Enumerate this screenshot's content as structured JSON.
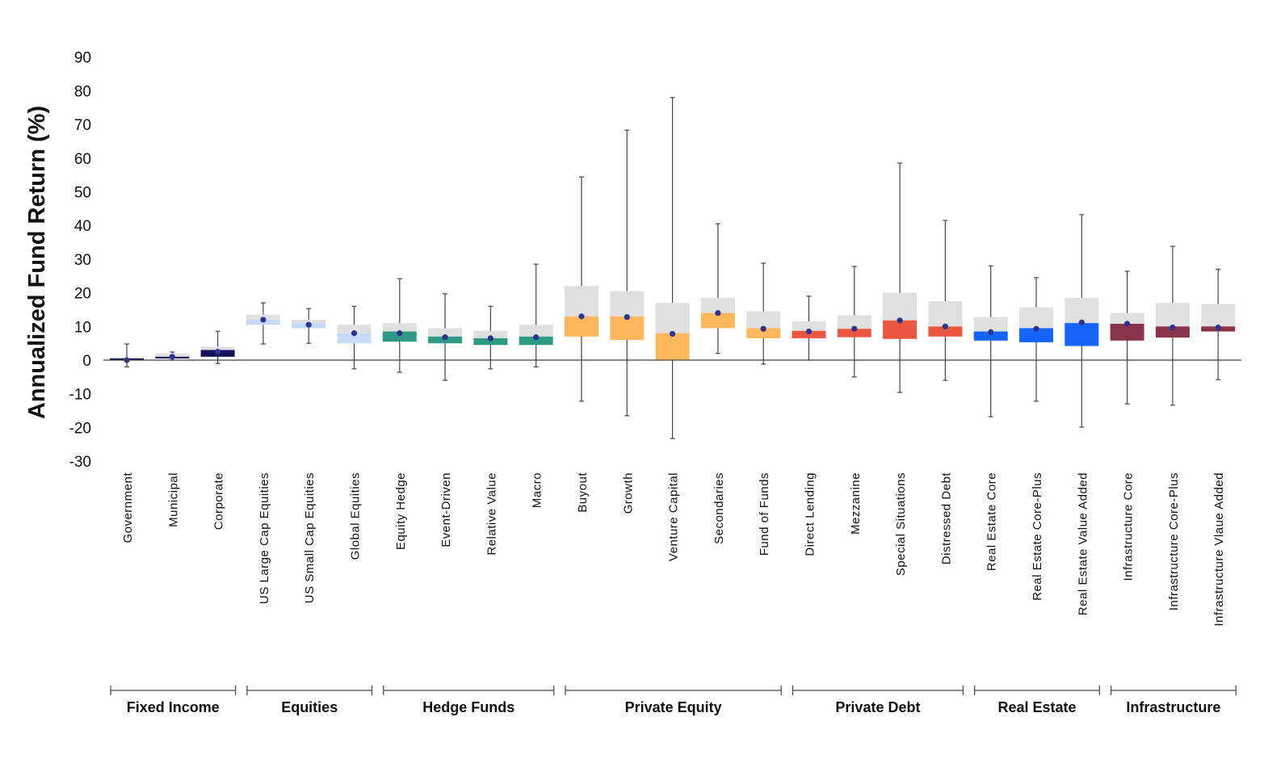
{
  "chart_data": {
    "type": "boxplot",
    "title": "",
    "ylabel": "Annualized Fund Return (%)",
    "xlabel": "",
    "ylim": [
      -30,
      90
    ],
    "yticks": [
      -30,
      -20,
      -10,
      0,
      10,
      20,
      30,
      40,
      50,
      60,
      70,
      80,
      90
    ],
    "grid": false,
    "legend": "none",
    "box_upper_color": "#e0e0e0",
    "mean_marker_color": "#2b3590",
    "groups": [
      {
        "name": "Fixed Income",
        "color": "#14115c",
        "categories": [
          {
            "label": "Government",
            "min": -2,
            "q1": 0,
            "median": 0.5,
            "q3": 0.8,
            "max": 4.8,
            "mean": 0
          },
          {
            "label": "Municipal",
            "min": 0,
            "q1": 0.5,
            "median": 1,
            "q3": 2,
            "max": 2.4,
            "mean": 1
          },
          {
            "label": "Corporate",
            "min": -1,
            "q1": 1,
            "median": 3,
            "q3": 4,
            "max": 8.6,
            "mean": 2.5
          }
        ]
      },
      {
        "name": "Equities",
        "color": "#c6daf8",
        "categories": [
          {
            "label": "US Large Cap Equities",
            "min": 4.8,
            "q1": 10.5,
            "median": 12,
            "q3": 13.5,
            "max": 17,
            "mean": 12
          },
          {
            "label": "US Small Cap Equities",
            "min": 5,
            "q1": 9.5,
            "median": 11,
            "q3": 12,
            "max": 15.3,
            "mean": 10.5
          },
          {
            "label": "Global Equities",
            "min": -2.6,
            "q1": 5,
            "median": 8,
            "q3": 10.5,
            "max": 16,
            "mean": 8
          }
        ]
      },
      {
        "name": "Hedge Funds",
        "color": "#2e9a84",
        "categories": [
          {
            "label": "Equity Hedge",
            "min": -3.6,
            "q1": 5.5,
            "median": 8.5,
            "q3": 11,
            "max": 24.2,
            "mean": 8
          },
          {
            "label": "Event-Driven",
            "min": -6,
            "q1": 5,
            "median": 7,
            "q3": 9.5,
            "max": 19.7,
            "mean": 6.8
          },
          {
            "label": "Relative Value",
            "min": -2.6,
            "q1": 4.5,
            "median": 6.5,
            "q3": 8.7,
            "max": 16,
            "mean": 6.5
          },
          {
            "label": "Macro",
            "min": -2,
            "q1": 4.5,
            "median": 7,
            "q3": 10.5,
            "max": 28.5,
            "mean": 6.8
          }
        ]
      },
      {
        "name": "Private Equity",
        "color": "#ffb75d",
        "categories": [
          {
            "label": "Buyout",
            "min": -12.2,
            "q1": 7,
            "median": 13,
            "q3": 22,
            "max": 54.4,
            "mean": 13
          },
          {
            "label": "Growth",
            "min": -16.5,
            "q1": 6,
            "median": 13,
            "q3": 20.5,
            "max": 68.3,
            "mean": 12.8
          },
          {
            "label": "Venture Capital",
            "min": -23.3,
            "q1": 0,
            "median": 8,
            "q3": 17,
            "max": 78,
            "mean": 7.8
          },
          {
            "label": "Secondaries",
            "min": 2,
            "q1": 9.5,
            "median": 14,
            "q3": 18.5,
            "max": 40.5,
            "mean": 14
          },
          {
            "label": "Fund of Funds",
            "min": -1.2,
            "q1": 6.5,
            "median": 9.5,
            "q3": 14.5,
            "max": 28.8,
            "mean": 9.3
          }
        ]
      },
      {
        "name": "Private Debt",
        "color": "#eb5640",
        "categories": [
          {
            "label": "Direct Lending",
            "min": 0,
            "q1": 6.5,
            "median": 8.7,
            "q3": 11.5,
            "max": 19,
            "mean": 8.5
          },
          {
            "label": "Mezzanine",
            "min": -5,
            "q1": 6.8,
            "median": 9.3,
            "q3": 13.3,
            "max": 27.8,
            "mean": 9.3
          },
          {
            "label": "Special Situations",
            "min": -9.6,
            "q1": 6.3,
            "median": 11.8,
            "q3": 20,
            "max": 58.5,
            "mean": 11.8
          },
          {
            "label": "Distressed Debt",
            "min": -6,
            "q1": 7,
            "median": 10,
            "q3": 17.5,
            "max": 41.5,
            "mean": 10
          }
        ]
      },
      {
        "name": "Real Estate",
        "color": "#1564f7",
        "categories": [
          {
            "label": "Real Estate Core",
            "min": -16.8,
            "q1": 5.8,
            "median": 8.5,
            "q3": 12.8,
            "max": 28,
            "mean": 8.3
          },
          {
            "label": "Real Estate Core-Plus",
            "min": -12.2,
            "q1": 5.3,
            "median": 9.5,
            "q3": 15.7,
            "max": 24.5,
            "mean": 9.3
          },
          {
            "label": "Real Estate Value Added",
            "min": -19.9,
            "q1": 4.2,
            "median": 11,
            "q3": 18.5,
            "max": 43.2,
            "mean": 11.2
          }
        ]
      },
      {
        "name": "Infrastructure",
        "color": "#8a3449",
        "categories": [
          {
            "label": "Infrastructure Core",
            "min": -13,
            "q1": 5.8,
            "median": 10.8,
            "q3": 14,
            "max": 26.4,
            "mean": 10.8
          },
          {
            "label": "Infrastructure Core-Plus",
            "min": -13.4,
            "q1": 6.7,
            "median": 10,
            "q3": 17,
            "max": 33.8,
            "mean": 9.7
          },
          {
            "label": "Infrastructure Vlaue Added",
            "min": -5.8,
            "q1": 8.5,
            "median": 10,
            "q3": 16.7,
            "max": 27,
            "mean": 9.7
          }
        ]
      }
    ]
  }
}
